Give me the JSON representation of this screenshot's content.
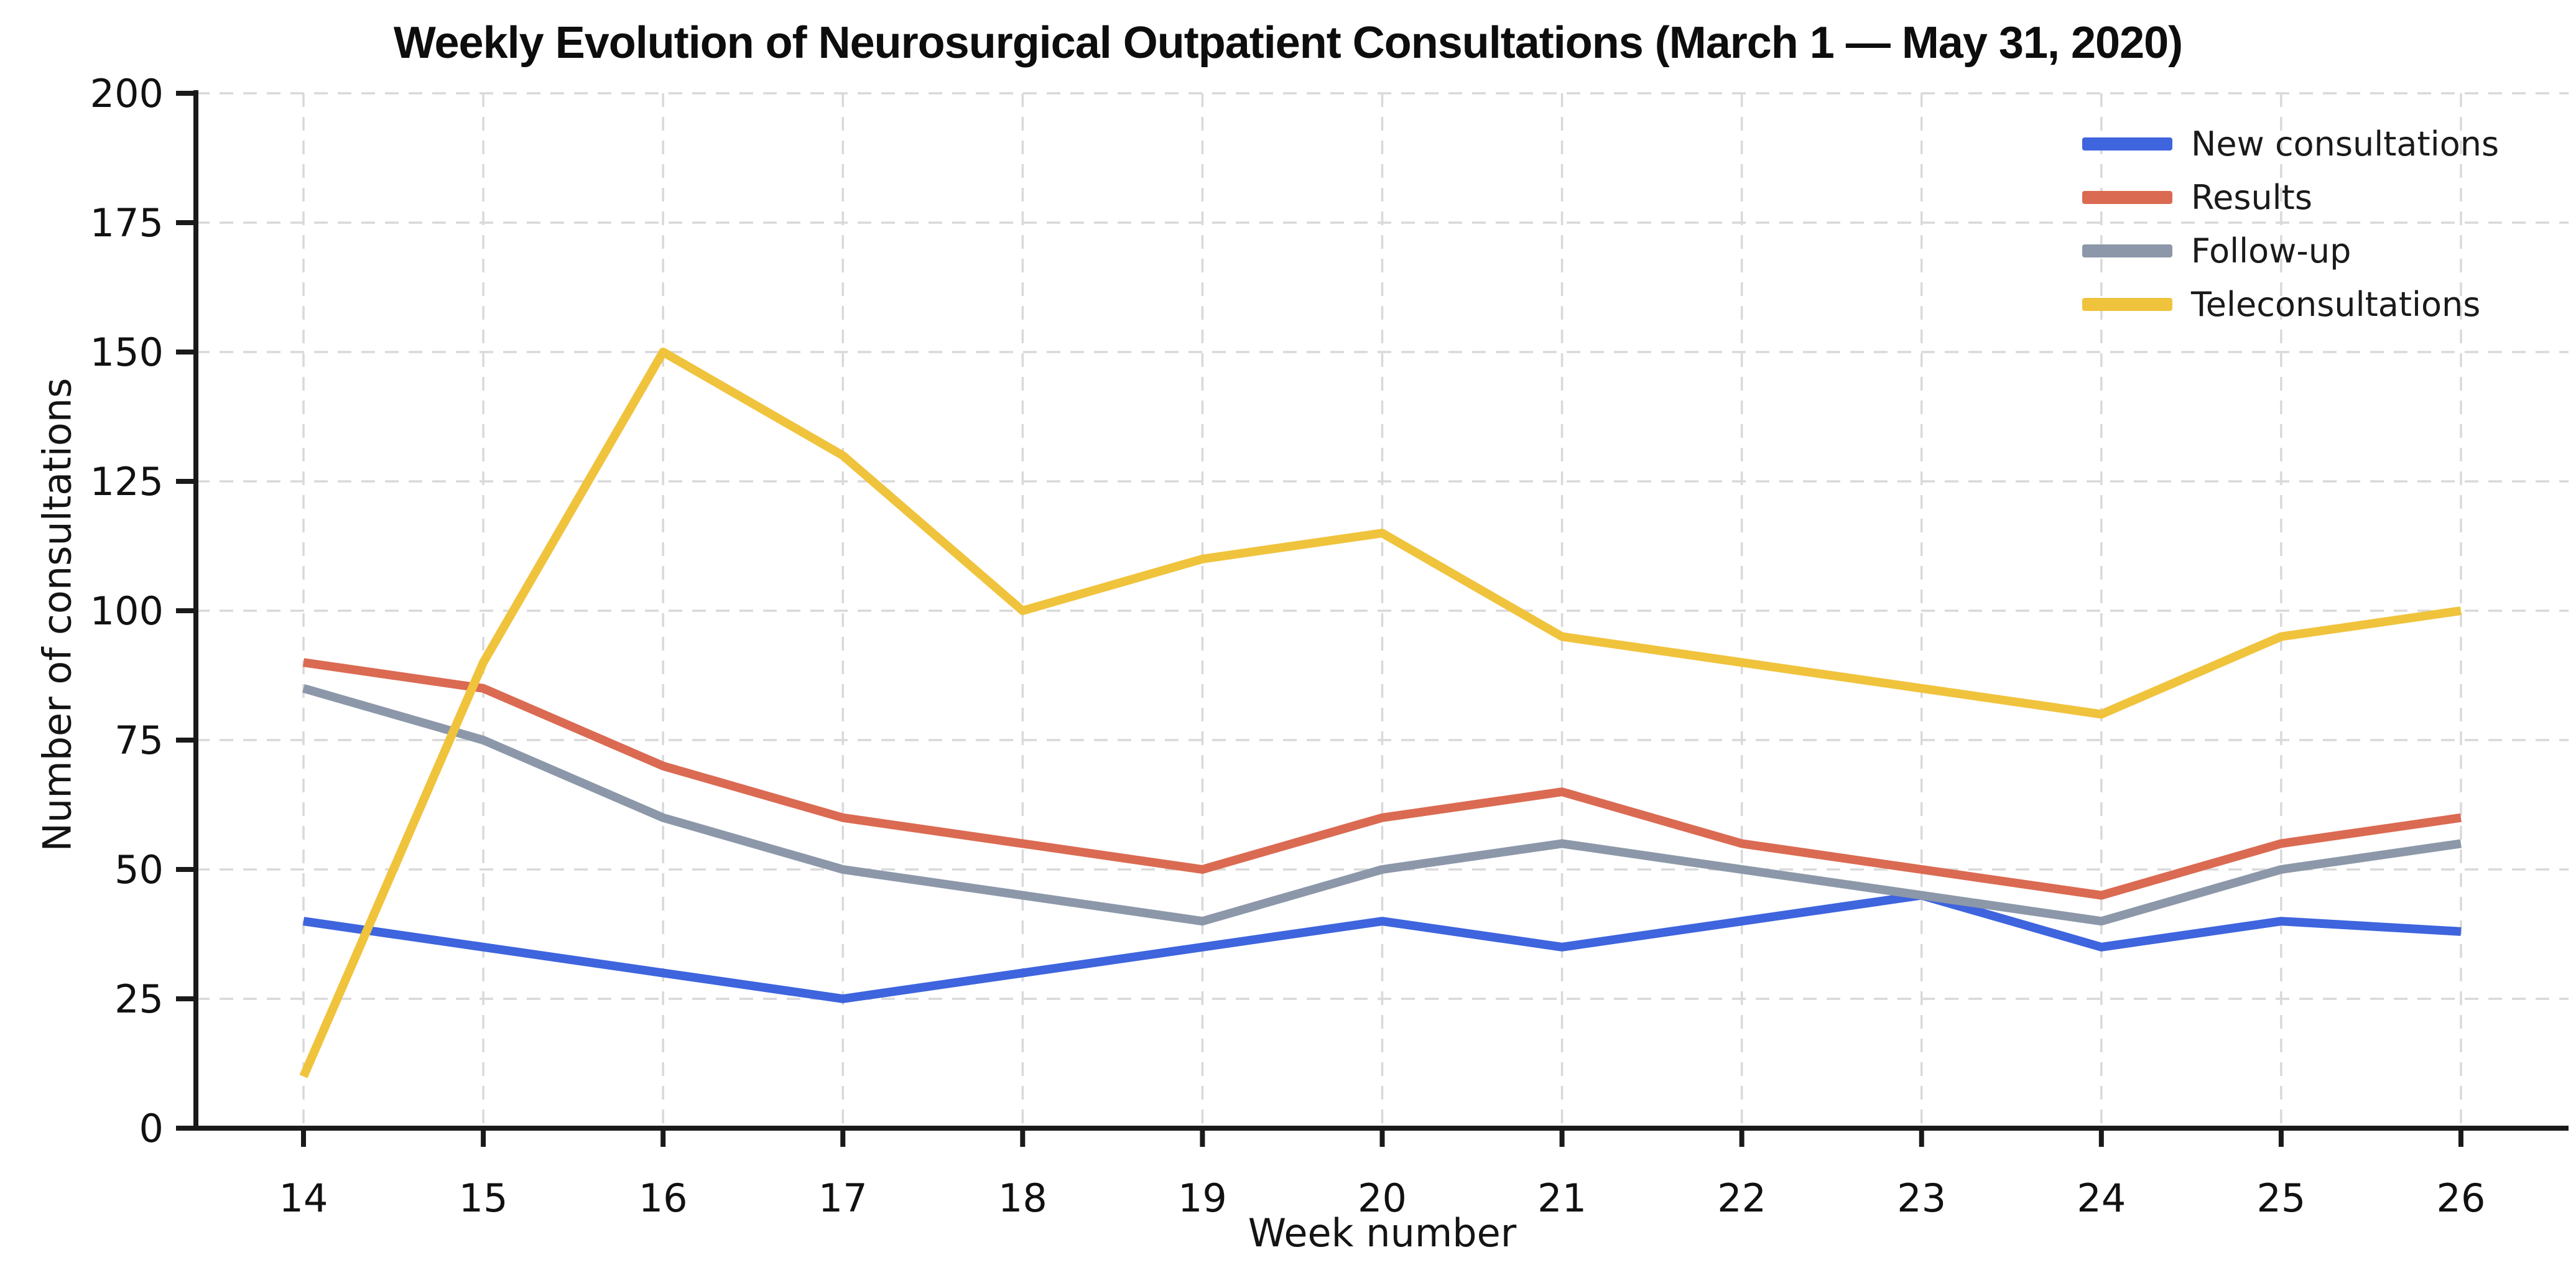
{
  "chart_data": {
    "type": "line",
    "title": "Weekly Evolution of Neurosurgical Outpatient Consultations (March 1 — May 31, 2020)",
    "xlabel": "Week number",
    "ylabel": "Number of consultations",
    "x": [
      14,
      15,
      16,
      17,
      18,
      19,
      20,
      21,
      22,
      23,
      24,
      25,
      26
    ],
    "ylim": [
      0,
      200
    ],
    "ytick_step": 25,
    "yticks": [
      0,
      25,
      50,
      75,
      100,
      125,
      150,
      175,
      200
    ],
    "grid": "dashed",
    "legend_position": "top-right",
    "series": [
      {
        "name": "New consultations",
        "color": "#3E64DE",
        "values": [
          40,
          35,
          30,
          25,
          30,
          35,
          40,
          35,
          40,
          45,
          35,
          40,
          38
        ]
      },
      {
        "name": "Results",
        "color": "#DB6A52",
        "values": [
          90,
          85,
          70,
          60,
          55,
          50,
          60,
          65,
          55,
          50,
          45,
          55,
          60
        ]
      },
      {
        "name": "Follow-up",
        "color": "#8C98A9",
        "values": [
          85,
          75,
          60,
          50,
          45,
          40,
          50,
          55,
          50,
          45,
          40,
          50,
          55
        ]
      },
      {
        "name": "Teleconsultations",
        "color": "#F0C33C",
        "values": [
          10,
          90,
          150,
          130,
          100,
          110,
          115,
          95,
          90,
          85,
          80,
          95,
          100
        ]
      }
    ],
    "style": {
      "grid_color": "#d9d9d9",
      "spine_color": "#1a1a1a",
      "tick_label_color": "#111111"
    }
  }
}
